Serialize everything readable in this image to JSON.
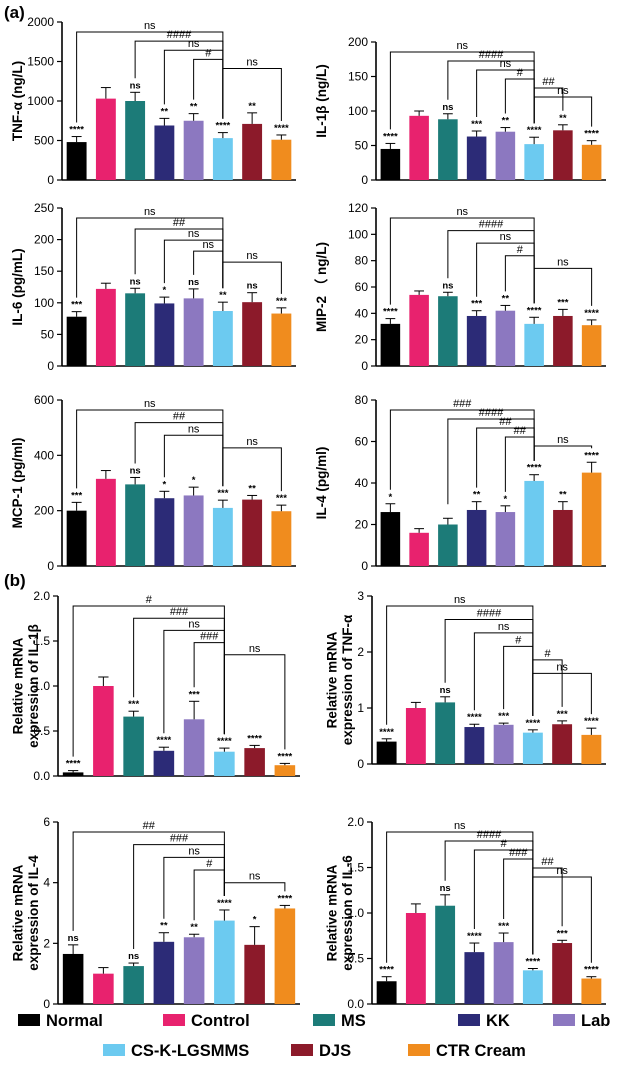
{
  "panel_labels": [
    "(a)",
    "(b)"
  ],
  "legend": [
    {
      "name": "Normal",
      "color": "#000000"
    },
    {
      "name": "Control",
      "color": "#e8226e"
    },
    {
      "name": "MS",
      "color": "#1c7b78"
    },
    {
      "name": "KK",
      "color": "#2c2b77"
    },
    {
      "name": "Lab",
      "color": "#8c78c0"
    },
    {
      "name": "CS-K-LGSMMS",
      "color": "#6ccaf0"
    },
    {
      "name": "DJS",
      "color": "#8c1a2a"
    },
    {
      "name": "CTR Cream",
      "color": "#f08c1e"
    }
  ],
  "chart_data": [
    {
      "type": "bar",
      "panel": "a",
      "ylabel": "TNF-α (ng/L)",
      "ylim": [
        0,
        2000
      ],
      "yticks": [
        "0",
        "500",
        "1000",
        "1500",
        "2000"
      ],
      "categories": [
        "Normal",
        "Control",
        "MS",
        "KK",
        "Lab",
        "CS-K-LGSMMS",
        "DJS",
        "CTR Cream"
      ],
      "values": [
        480,
        1030,
        1000,
        690,
        750,
        530,
        710,
        510
      ],
      "errors": [
        70,
        140,
        110,
        90,
        90,
        70,
        140,
        60
      ],
      "significance": [
        "****",
        "",
        "ns",
        "**",
        "**",
        "****",
        "**",
        "****"
      ],
      "comparisons": [
        {
          "label": "ns",
          "from": 0,
          "to": 5
        },
        {
          "label": "####",
          "from": 2,
          "to": 5
        },
        {
          "label": "ns",
          "from": 3,
          "to": 5
        },
        {
          "label": "#",
          "from": 4,
          "to": 5
        },
        {
          "label": "ns",
          "from": 5,
          "to": 7
        }
      ]
    },
    {
      "type": "bar",
      "panel": "a",
      "ylabel": "IL-1β (ng/L)",
      "ylim": [
        0,
        200
      ],
      "yticks": [
        "0",
        "50",
        "100",
        "150",
        "200"
      ],
      "categories": [
        "Normal",
        "Control",
        "MS",
        "KK",
        "Lab",
        "CS-K-LGSMMS",
        "DJS",
        "CTR Cream"
      ],
      "values": [
        45,
        93,
        88,
        63,
        70,
        52,
        72,
        51
      ],
      "errors": [
        8,
        7,
        8,
        8,
        6,
        10,
        8,
        6
      ],
      "significance": [
        "****",
        "",
        "ns",
        "***",
        "**",
        "****",
        "**",
        "****"
      ],
      "comparisons": [
        {
          "label": "ns",
          "from": 0,
          "to": 5
        },
        {
          "label": "####",
          "from": 2,
          "to": 5
        },
        {
          "label": "ns",
          "from": 3,
          "to": 5
        },
        {
          "label": "#",
          "from": 4,
          "to": 5
        },
        {
          "label": "##",
          "from": 5,
          "to": 6
        },
        {
          "label": "ns",
          "from": 5,
          "to": 7
        }
      ]
    },
    {
      "type": "bar",
      "panel": "a",
      "ylabel": "IL-6 (pg/mL)",
      "ylim": [
        0,
        250
      ],
      "yticks": [
        "0",
        "50",
        "100",
        "150",
        "200",
        "250"
      ],
      "categories": [
        "Normal",
        "Control",
        "MS",
        "KK",
        "Lab",
        "CS-K-LGSMMS",
        "DJS",
        "CTR Cream"
      ],
      "values": [
        78,
        122,
        115,
        99,
        107,
        87,
        101,
        83
      ],
      "errors": [
        8,
        9,
        8,
        10,
        15,
        14,
        15,
        9
      ],
      "significance": [
        "***",
        "",
        "ns",
        "*",
        "ns",
        "**",
        "ns",
        "***"
      ],
      "comparisons": [
        {
          "label": "ns",
          "from": 0,
          "to": 5
        },
        {
          "label": "##",
          "from": 2,
          "to": 5
        },
        {
          "label": "ns",
          "from": 3,
          "to": 5
        },
        {
          "label": "ns",
          "from": 4,
          "to": 5
        },
        {
          "label": "ns",
          "from": 5,
          "to": 7
        }
      ]
    },
    {
      "type": "bar",
      "panel": "a",
      "ylabel": "MIP-2 （ ng/L)",
      "ylim": [
        0,
        120
      ],
      "yticks": [
        "0",
        "20",
        "40",
        "60",
        "80",
        "100",
        "120"
      ],
      "categories": [
        "Normal",
        "Control",
        "MS",
        "KK",
        "Lab",
        "CS-K-LGSMMS",
        "DJS",
        "CTR Cream"
      ],
      "values": [
        32,
        54,
        53,
        38,
        42,
        32,
        38,
        31
      ],
      "errors": [
        4,
        3,
        3,
        4,
        4,
        5,
        5,
        4
      ],
      "significance": [
        "****",
        "",
        "ns",
        "***",
        "**",
        "****",
        "***",
        "****"
      ],
      "comparisons": [
        {
          "label": "ns",
          "from": 0,
          "to": 5
        },
        {
          "label": "####",
          "from": 2,
          "to": 5
        },
        {
          "label": "ns",
          "from": 3,
          "to": 5
        },
        {
          "label": "#",
          "from": 4,
          "to": 5
        },
        {
          "label": "ns",
          "from": 5,
          "to": 7
        }
      ]
    },
    {
      "type": "bar",
      "panel": "a",
      "ylabel": "MCP-1 (pg/ml)",
      "ylim": [
        0,
        600
      ],
      "yticks": [
        "0",
        "200",
        "400",
        "600"
      ],
      "categories": [
        "Normal",
        "Control",
        "MS",
        "KK",
        "Lab",
        "CS-K-LGSMMS",
        "DJS",
        "CTR Cream"
      ],
      "values": [
        200,
        315,
        295,
        245,
        255,
        210,
        240,
        198
      ],
      "errors": [
        30,
        30,
        25,
        25,
        30,
        28,
        15,
        22
      ],
      "significance": [
        "***",
        "",
        "ns",
        "*",
        "*",
        "***",
        "**",
        "***"
      ],
      "comparisons": [
        {
          "label": "ns",
          "from": 0,
          "to": 5
        },
        {
          "label": "##",
          "from": 2,
          "to": 5
        },
        {
          "label": "ns",
          "from": 3,
          "to": 5
        },
        {
          "label": "ns",
          "from": 5,
          "to": 7
        }
      ]
    },
    {
      "type": "bar",
      "panel": "a",
      "ylabel": "IL-4 (pg/ml)",
      "ylim": [
        0,
        80
      ],
      "yticks": [
        "0",
        "20",
        "40",
        "60",
        "80"
      ],
      "categories": [
        "Normal",
        "Control",
        "MS",
        "KK",
        "Lab",
        "CS-K-LGSMMS",
        "DJS",
        "CTR Cream"
      ],
      "values": [
        26,
        16,
        20,
        27,
        26,
        41,
        27,
        45
      ],
      "errors": [
        4,
        2,
        3,
        4,
        3,
        3,
        4,
        5
      ],
      "significance": [
        "*",
        "",
        "",
        "**",
        "*",
        "****",
        "**",
        "****"
      ],
      "comparisons": [
        {
          "label": "###",
          "from": 0,
          "to": 5
        },
        {
          "label": "####",
          "from": 2,
          "to": 5
        },
        {
          "label": "##",
          "from": 3,
          "to": 5
        },
        {
          "label": "##",
          "from": 4,
          "to": 5
        },
        {
          "label": "ns",
          "from": 5,
          "to": 7
        }
      ]
    },
    {
      "type": "bar",
      "panel": "b",
      "ylabel": "Relative mRNA expression of IL-1β",
      "ylim": [
        0,
        2.0
      ],
      "yticks": [
        "0.0",
        "0.5",
        "1.0",
        "1.5",
        "2.0"
      ],
      "categories": [
        "Normal",
        "Control",
        "MS",
        "KK",
        "Lab",
        "CS-K-LGSMMS",
        "DJS",
        "CTR Cream"
      ],
      "values": [
        0.04,
        1.0,
        0.66,
        0.28,
        0.63,
        0.27,
        0.31,
        0.12
      ],
      "errors": [
        0.02,
        0.1,
        0.06,
        0.04,
        0.2,
        0.04,
        0.03,
        0.02
      ],
      "significance": [
        "****",
        "",
        "***",
        "****",
        "***",
        "****",
        "****",
        "****"
      ],
      "comparisons": [
        {
          "label": "#",
          "from": 0,
          "to": 5
        },
        {
          "label": "###",
          "from": 2,
          "to": 5
        },
        {
          "label": "ns",
          "from": 3,
          "to": 5
        },
        {
          "label": "###",
          "from": 4,
          "to": 5
        },
        {
          "label": "ns",
          "from": 5,
          "to": 7
        }
      ]
    },
    {
      "type": "bar",
      "panel": "b",
      "ylabel": "Relative mRNA expression of TNF-α",
      "ylim": [
        0,
        3
      ],
      "yticks": [
        "0",
        "1",
        "2",
        "3"
      ],
      "categories": [
        "Normal",
        "Control",
        "MS",
        "KK",
        "Lab",
        "CS-K-LGSMMS",
        "DJS",
        "CTR Cream"
      ],
      "values": [
        0.4,
        1.0,
        1.1,
        0.66,
        0.7,
        0.56,
        0.71,
        0.52
      ],
      "errors": [
        0.05,
        0.1,
        0.1,
        0.05,
        0.03,
        0.05,
        0.06,
        0.12
      ],
      "significance": [
        "****",
        "",
        "ns",
        "****",
        "***",
        "****",
        "***",
        "****"
      ],
      "comparisons": [
        {
          "label": "ns",
          "from": 0,
          "to": 5
        },
        {
          "label": "####",
          "from": 2,
          "to": 5
        },
        {
          "label": "ns",
          "from": 3,
          "to": 5
        },
        {
          "label": "#",
          "from": 4,
          "to": 5
        },
        {
          "label": "#",
          "from": 5,
          "to": 6
        },
        {
          "label": "ns",
          "from": 5,
          "to": 7
        }
      ]
    },
    {
      "type": "bar",
      "panel": "b",
      "ylabel": "Relative mRNA expression of IL-4",
      "ylim": [
        0,
        6
      ],
      "yticks": [
        "0",
        "2",
        "4",
        "6"
      ],
      "categories": [
        "Normal",
        "Control",
        "MS",
        "KK",
        "Lab",
        "CS-K-LGSMMS",
        "DJS",
        "CTR Cream"
      ],
      "values": [
        1.65,
        1.0,
        1.25,
        2.05,
        2.2,
        2.75,
        1.95,
        3.15
      ],
      "errors": [
        0.3,
        0.2,
        0.1,
        0.3,
        0.1,
        0.35,
        0.6,
        0.1
      ],
      "significance": [
        "ns",
        "",
        "ns",
        "**",
        "**",
        "****",
        "*",
        "****"
      ],
      "comparisons": [
        {
          "label": "##",
          "from": 0,
          "to": 5
        },
        {
          "label": "###",
          "from": 2,
          "to": 5
        },
        {
          "label": "ns",
          "from": 3,
          "to": 5
        },
        {
          "label": "#",
          "from": 4,
          "to": 5
        },
        {
          "label": "ns",
          "from": 5,
          "to": 7
        }
      ]
    },
    {
      "type": "bar",
      "panel": "b",
      "ylabel": "Relative mRNA expression of IL-6",
      "ylim": [
        0,
        2.0
      ],
      "yticks": [
        "0.0",
        "0.5",
        "1.0",
        "1.5",
        "2.0"
      ],
      "categories": [
        "Normal",
        "Control",
        "MS",
        "KK",
        "Lab",
        "CS-K-LGSMMS",
        "DJS",
        "CTR Cream"
      ],
      "values": [
        0.25,
        1.0,
        1.08,
        0.57,
        0.68,
        0.37,
        0.67,
        0.28
      ],
      "errors": [
        0.05,
        0.1,
        0.12,
        0.1,
        0.1,
        0.02,
        0.03,
        0.02
      ],
      "significance": [
        "****",
        "",
        "ns",
        "****",
        "***",
        "****",
        "***",
        "****"
      ],
      "comparisons": [
        {
          "label": "ns",
          "from": 0,
          "to": 5
        },
        {
          "label": "####",
          "from": 2,
          "to": 5
        },
        {
          "label": "#",
          "from": 3,
          "to": 5
        },
        {
          "label": "###",
          "from": 4,
          "to": 5
        },
        {
          "label": "##",
          "from": 5,
          "to": 6
        },
        {
          "label": "ns",
          "from": 5,
          "to": 7
        }
      ]
    }
  ]
}
